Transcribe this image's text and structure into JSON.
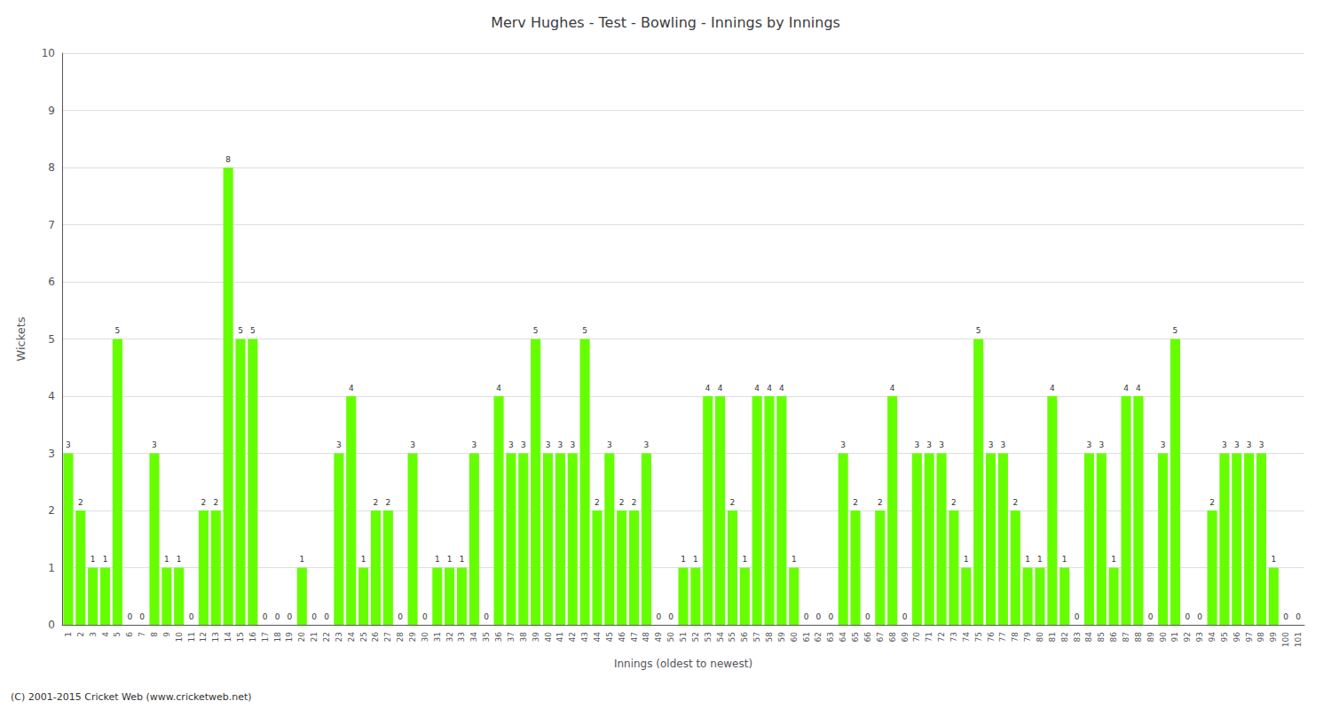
{
  "chart_data": {
    "type": "bar",
    "title": "Merv Hughes - Test - Bowling - Innings by Innings",
    "xlabel": "Innings (oldest to newest)",
    "ylabel": "Wickets",
    "footer": "(C) 2001-2015 Cricket Web (www.cricketweb.net)",
    "categories": [
      "1",
      "2",
      "3",
      "4",
      "5",
      "6",
      "7",
      "8",
      "9",
      "10",
      "11",
      "12",
      "13",
      "14",
      "15",
      "16",
      "17",
      "18",
      "19",
      "20",
      "21",
      "22",
      "23",
      "24",
      "25",
      "26",
      "27",
      "28",
      "29",
      "30",
      "31",
      "32",
      "33",
      "34",
      "35",
      "36",
      "37",
      "38",
      "39",
      "40",
      "41",
      "42",
      "43",
      "44",
      "45",
      "46",
      "47",
      "48",
      "49",
      "50",
      "51",
      "52",
      "53",
      "54",
      "55",
      "56",
      "57",
      "58",
      "59",
      "60",
      "61",
      "62",
      "63",
      "64",
      "65",
      "66",
      "67",
      "68",
      "69",
      "70",
      "71",
      "72",
      "73",
      "74",
      "75",
      "76",
      "77",
      "78",
      "79",
      "80",
      "81",
      "82",
      "83",
      "84",
      "85",
      "86",
      "87",
      "88",
      "89",
      "90",
      "91",
      "92",
      "93",
      "94",
      "95",
      "96",
      "97",
      "98",
      "99",
      "100",
      "101"
    ],
    "values": [
      3,
      2,
      1,
      1,
      5,
      0,
      0,
      3,
      1,
      1,
      0,
      2,
      2,
      8,
      5,
      5,
      0,
      0,
      0,
      1,
      0,
      0,
      3,
      4,
      1,
      2,
      2,
      0,
      3,
      0,
      1,
      1,
      1,
      3,
      0,
      4,
      3,
      3,
      5,
      3,
      3,
      3,
      5,
      2,
      3,
      2,
      2,
      3,
      0,
      0,
      1,
      1,
      4,
      4,
      2,
      1,
      4,
      4,
      4,
      1,
      0,
      0,
      0,
      3,
      2,
      0,
      2,
      4,
      0,
      3,
      3,
      3,
      2,
      1,
      5,
      3,
      3,
      2,
      1,
      1,
      4,
      1,
      0,
      3,
      3,
      1,
      4,
      4,
      0,
      3,
      5,
      0,
      0,
      2,
      3,
      3,
      3,
      3,
      1,
      0,
      0
    ],
    "color": "#66ff00",
    "ylim": [
      0,
      10
    ],
    "yticks": [
      0,
      1,
      2,
      3,
      4,
      5,
      6,
      7,
      8,
      9,
      10
    ],
    "grid": true,
    "data_labels": true
  }
}
